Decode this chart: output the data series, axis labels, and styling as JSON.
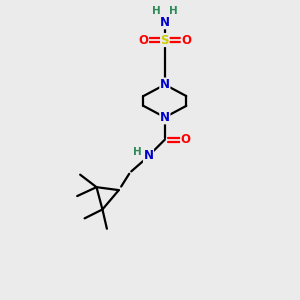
{
  "bg_color": "#ebebeb",
  "atom_colors": {
    "C": "#000000",
    "N": "#0000cc",
    "O": "#ff0000",
    "S": "#cccc00",
    "H": "#2e8b57"
  },
  "bond_color": "#000000",
  "line_width": 1.6,
  "font_size_atom": 8.5,
  "font_size_H": 7.5
}
